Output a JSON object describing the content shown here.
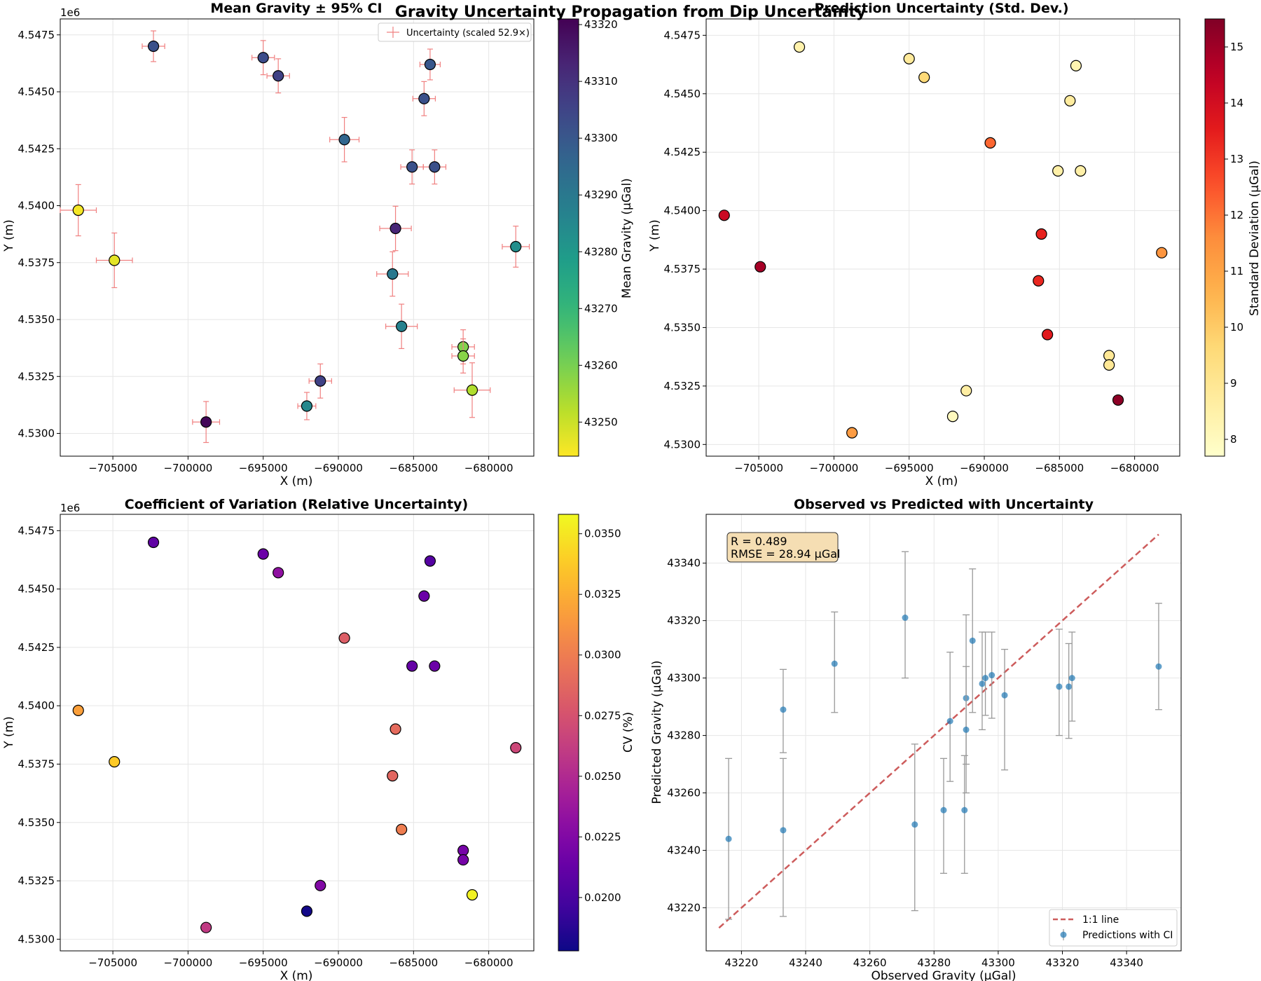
{
  "figure": {
    "suptitle": "Gravity Uncertainty Propagation from Dip Uncertainty"
  },
  "chart_data": [
    {
      "id": "mean",
      "type": "scatter",
      "title": "Mean Gravity ± 95% CI",
      "xlabel": "X (m)",
      "ylabel": "Y (m)",
      "y_offset_label": "1e6",
      "xlim": [
        -708500,
        -677000
      ],
      "ylim": [
        4529000,
        4548200
      ],
      "xticks": [
        -705000,
        -700000,
        -695000,
        -690000,
        -685000,
        -680000
      ],
      "xtick_labels": [
        "−705000",
        "−700000",
        "−695000",
        "−690000",
        "−685000",
        "−680000"
      ],
      "yticks": [
        4530000,
        4532500,
        4535000,
        4537500,
        4540000,
        4542500,
        4545000,
        4547500
      ],
      "ytick_labels": [
        "4.5300",
        "4.5325",
        "4.5350",
        "4.5375",
        "4.5400",
        "4.5425",
        "4.5450",
        "4.5475"
      ],
      "grid": true,
      "colormap": "viridis",
      "colormap_reversed": true,
      "color_key": "mean",
      "clim": [
        43244,
        43321
      ],
      "colorbar_label": "Mean Gravity (μGal)",
      "colorbar_ticks": [
        43250,
        43260,
        43270,
        43280,
        43290,
        43300,
        43310,
        43320
      ],
      "errorbars": true,
      "errorbar_color": "#f08080",
      "legend": {
        "label": "Uncertainty (scaled 52.9×)",
        "placement": "upper right"
      }
    },
    {
      "id": "std",
      "type": "scatter",
      "title": "Prediction Uncertainty (Std. Dev.)",
      "xlabel": "X (m)",
      "ylabel": "Y (m)",
      "y_offset_label": "1e6",
      "xlim": [
        -708500,
        -677000
      ],
      "ylim": [
        4529500,
        4548200
      ],
      "xticks": [
        -705000,
        -700000,
        -695000,
        -690000,
        -685000,
        -680000
      ],
      "xtick_labels": [
        "−705000",
        "−700000",
        "−695000",
        "−690000",
        "−685000",
        "−680000"
      ],
      "yticks": [
        4530000,
        4532500,
        4535000,
        4537500,
        4540000,
        4542500,
        4545000,
        4547500
      ],
      "ytick_labels": [
        "4.5300",
        "4.5325",
        "4.5350",
        "4.5375",
        "4.5400",
        "4.5425",
        "4.5450",
        "4.5475"
      ],
      "grid": true,
      "colormap": "YlOrRd",
      "colormap_reversed": false,
      "color_key": "std",
      "clim": [
        7.7,
        15.5
      ],
      "colorbar_label": "Standard Deviation (μGal)",
      "colorbar_ticks": [
        8,
        9,
        10,
        11,
        12,
        13,
        14,
        15
      ]
    },
    {
      "id": "cv",
      "type": "scatter",
      "title": "Coefficient of Variation (Relative Uncertainty)",
      "xlabel": "X (m)",
      "ylabel": "Y (m)",
      "y_offset_label": "1e6",
      "xlim": [
        -708500,
        -677000
      ],
      "ylim": [
        4529500,
        4548200
      ],
      "xticks": [
        -705000,
        -700000,
        -695000,
        -690000,
        -685000,
        -680000
      ],
      "xtick_labels": [
        "−705000",
        "−700000",
        "−695000",
        "−690000",
        "−685000",
        "−680000"
      ],
      "yticks": [
        4530000,
        4532500,
        4535000,
        4537500,
        4540000,
        4542500,
        4545000,
        4547500
      ],
      "ytick_labels": [
        "4.5300",
        "4.5325",
        "4.5350",
        "4.5375",
        "4.5400",
        "4.5425",
        "4.5450",
        "4.5475"
      ],
      "grid": true,
      "colormap": "plasma",
      "colormap_reversed": false,
      "color_key": "cv",
      "clim": [
        0.0178,
        0.0358
      ],
      "colorbar_label": "CV (%)",
      "colorbar_ticks": [
        0.02,
        0.0225,
        0.025,
        0.0275,
        0.03,
        0.0325,
        0.035
      ],
      "colorbar_tick_labels": [
        "0.0200",
        "0.0225",
        "0.0250",
        "0.0275",
        "0.0300",
        "0.0325",
        "0.0350"
      ]
    },
    {
      "id": "obs_pred",
      "type": "scatter",
      "title": "Observed vs Predicted with Uncertainty",
      "xlabel": "Observed Gravity (μGal)",
      "ylabel": "Predicted Gravity (μGal)",
      "xlim": [
        43209,
        43357
      ],
      "ylim": [
        43205,
        43357
      ],
      "xticks": [
        43220,
        43240,
        43260,
        43280,
        43300,
        43320,
        43340
      ],
      "yticks": [
        43220,
        43240,
        43260,
        43280,
        43300,
        43320,
        43340
      ],
      "grid": true,
      "point_color": "#1f77b4",
      "errorbar_color": "#999999",
      "one_to_one_line": {
        "from": 43213,
        "to": 43350,
        "color": "#cd5c5c"
      },
      "annotation": [
        "R = 0.489",
        "RMSE = 28.94 μGal"
      ],
      "legend": {
        "entries": [
          "1:1 line",
          "Predictions with CI"
        ],
        "placement": "lower right"
      },
      "points": [
        {
          "x": 43216,
          "y": 43244,
          "lo": 43216,
          "hi": 43272
        },
        {
          "x": 43233,
          "y": 43289,
          "lo": 43274,
          "hi": 43303
        },
        {
          "x": 43233,
          "y": 43247,
          "lo": 43217,
          "hi": 43272
        },
        {
          "x": 43249,
          "y": 43305,
          "lo": 43288,
          "hi": 43323
        },
        {
          "x": 43271,
          "y": 43321,
          "lo": 43300,
          "hi": 43344
        },
        {
          "x": 43274,
          "y": 43249,
          "lo": 43219,
          "hi": 43277
        },
        {
          "x": 43283,
          "y": 43254,
          "lo": 43232,
          "hi": 43272
        },
        {
          "x": 43285,
          "y": 43285,
          "lo": 43264,
          "hi": 43309
        },
        {
          "x": 43289.5,
          "y": 43254,
          "lo": 43232,
          "hi": 43273
        },
        {
          "x": 43290,
          "y": 43293,
          "lo": 43270,
          "hi": 43322
        },
        {
          "x": 43290,
          "y": 43282,
          "lo": 43260,
          "hi": 43304
        },
        {
          "x": 43292,
          "y": 43313,
          "lo": 43288,
          "hi": 43338
        },
        {
          "x": 43295,
          "y": 43298,
          "lo": 43282,
          "hi": 43316
        },
        {
          "x": 43296,
          "y": 43300,
          "lo": 43287,
          "hi": 43316
        },
        {
          "x": 43298,
          "y": 43301,
          "lo": 43286,
          "hi": 43316
        },
        {
          "x": 43302,
          "y": 43294,
          "lo": 43268,
          "hi": 43310
        },
        {
          "x": 43319,
          "y": 43297,
          "lo": 43280,
          "hi": 43317
        },
        {
          "x": 43322,
          "y": 43297,
          "lo": 43279,
          "hi": 43312
        },
        {
          "x": 43323,
          "y": 43300,
          "lo": 43285,
          "hi": 43316
        },
        {
          "x": 43350,
          "y": 43304,
          "lo": 43289,
          "hi": 43326
        }
      ]
    }
  ],
  "stations": [
    {
      "x": -707300,
      "y": 4539800,
      "mean": 43245,
      "std": 14.2,
      "cv": 0.0318,
      "ex": 800,
      "ey": 750
    },
    {
      "x": -704900,
      "y": 4537600,
      "mean": 43247,
      "std": 14.9,
      "cv": 0.0338,
      "ex": 800,
      "ey": 800
    },
    {
      "x": -702300,
      "y": 4547000,
      "mean": 43302,
      "std": 8.4,
      "cv": 0.021,
      "ex": 500,
      "ey": 450
    },
    {
      "x": -698800,
      "y": 4530500,
      "mean": 43320,
      "std": 11.2,
      "cv": 0.026,
      "ex": 600,
      "ey": 600
    },
    {
      "x": -695000,
      "y": 4546500,
      "mean": 43303,
      "std": 8.8,
      "cv": 0.0215,
      "ex": 500,
      "ey": 500
    },
    {
      "x": -694000,
      "y": 4545700,
      "mean": 43306,
      "std": 9.6,
      "cv": 0.0232,
      "ex": 500,
      "ey": 500
    },
    {
      "x": -692100,
      "y": 4531200,
      "mean": 43285,
      "std": 8.0,
      "cv": 0.018,
      "ex": 400,
      "ey": 400
    },
    {
      "x": -691200,
      "y": 4532300,
      "mean": 43306,
      "std": 8.6,
      "cv": 0.0225,
      "ex": 500,
      "ey": 500
    },
    {
      "x": -689600,
      "y": 4542900,
      "mean": 43296,
      "std": 12.2,
      "cv": 0.0282,
      "ex": 650,
      "ey": 650
    },
    {
      "x": -686400,
      "y": 4537000,
      "mean": 43290,
      "std": 13.3,
      "cv": 0.0287,
      "ex": 700,
      "ey": 650
    },
    {
      "x": -686200,
      "y": 4539000,
      "mean": 43313,
      "std": 13.4,
      "cv": 0.029,
      "ex": 700,
      "ey": 650
    },
    {
      "x": -685800,
      "y": 4534700,
      "mean": 43287,
      "std": 13.6,
      "cv": 0.03,
      "ex": 700,
      "ey": 650
    },
    {
      "x": -685100,
      "y": 4541700,
      "mean": 43302,
      "std": 8.5,
      "cv": 0.0212,
      "ex": 500,
      "ey": 500
    },
    {
      "x": -684300,
      "y": 4544700,
      "mean": 43302,
      "std": 8.7,
      "cv": 0.0215,
      "ex": 500,
      "ey": 500
    },
    {
      "x": -683900,
      "y": 4546200,
      "mean": 43300,
      "std": 8.3,
      "cv": 0.0205,
      "ex": 450,
      "ey": 450
    },
    {
      "x": -683600,
      "y": 4541700,
      "mean": 43302,
      "std": 8.5,
      "cv": 0.0215,
      "ex": 500,
      "ey": 500
    },
    {
      "x": -681700,
      "y": 4533800,
      "mean": 43259,
      "std": 8.9,
      "cv": 0.022,
      "ex": 500,
      "ey": 500
    },
    {
      "x": -681700,
      "y": 4533400,
      "mean": 43258,
      "std": 8.9,
      "cv": 0.022,
      "ex": 500,
      "ey": 500
    },
    {
      "x": -681100,
      "y": 4531900,
      "mean": 43253,
      "std": 15.3,
      "cv": 0.0355,
      "ex": 800,
      "ey": 800
    },
    {
      "x": -678200,
      "y": 4538200,
      "mean": 43283,
      "std": 11.4,
      "cv": 0.0268,
      "ex": 600,
      "ey": 600
    }
  ]
}
